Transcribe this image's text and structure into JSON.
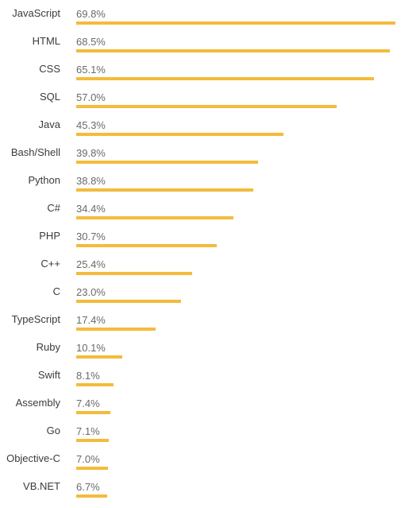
{
  "chart_data": {
    "type": "bar",
    "orientation": "horizontal",
    "title": "",
    "xlabel": "",
    "ylabel": "",
    "value_suffix": "%",
    "xlim": [
      0,
      69.8
    ],
    "grid": false,
    "legend": "none",
    "bar_color": "#f4bb3c",
    "categories": [
      "JavaScript",
      "HTML",
      "CSS",
      "SQL",
      "Java",
      "Bash/Shell",
      "Python",
      "C#",
      "PHP",
      "C++",
      "C",
      "TypeScript",
      "Ruby",
      "Swift",
      "Assembly",
      "Go",
      "Objective-C",
      "VB.NET"
    ],
    "values": [
      69.8,
      68.5,
      65.1,
      57.0,
      45.3,
      39.8,
      38.8,
      34.4,
      30.7,
      25.4,
      23.0,
      17.4,
      10.1,
      8.1,
      7.4,
      7.1,
      7.0,
      6.7
    ],
    "value_labels": [
      "69.8%",
      "68.5%",
      "65.1%",
      "57.0%",
      "45.3%",
      "39.8%",
      "38.8%",
      "34.4%",
      "30.7%",
      "25.4%",
      "23.0%",
      "17.4%",
      "10.1%",
      "8.1%",
      "7.4%",
      "7.1%",
      "7.0%",
      "6.7%"
    ]
  }
}
